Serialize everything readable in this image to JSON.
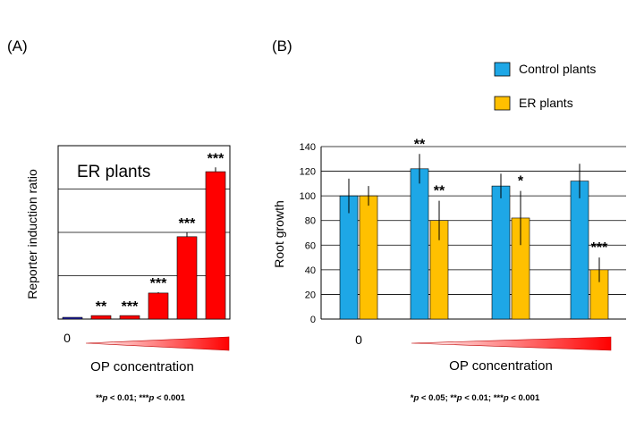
{
  "chart_data": [
    {
      "panel_label": "(A)",
      "type": "bar",
      "title": "ER plants",
      "ylabel": "Reporter induction ratio",
      "xlabel": "OP concentration",
      "x_first_label": "0",
      "ylim": [
        0,
        4
      ],
      "grid": true,
      "values": [
        0.04,
        0.08,
        0.08,
        0.6,
        1.9,
        3.4
      ],
      "errors": [
        0.0,
        0.0,
        0.0,
        0.02,
        0.1,
        0.1
      ],
      "significance": [
        "",
        "**",
        "***",
        "***",
        "***",
        "***"
      ],
      "bar_colors": [
        "#1f1fb0",
        "#ff0000",
        "#ff0000",
        "#ff0000",
        "#ff0000",
        "#ff0000"
      ],
      "footnote": [
        {
          "text": "**",
          "italic": false
        },
        {
          "text": "p",
          "italic": true
        },
        {
          "text": " < 0.01; ***",
          "italic": false
        },
        {
          "text": "p",
          "italic": true
        },
        {
          "text": " < 0.001",
          "italic": false
        }
      ]
    },
    {
      "panel_label": "(B)",
      "type": "bar",
      "ylabel": "Root growth",
      "xlabel": "OP concentration",
      "x_first_label": "0",
      "ylim": [
        0,
        140
      ],
      "yticks": [
        0,
        20,
        40,
        60,
        80,
        100,
        120,
        140
      ],
      "grid": true,
      "legend_position": "top-right",
      "series": [
        {
          "name": "Control plants",
          "color": "#1ea7e6",
          "values": [
            100,
            122,
            108,
            112
          ],
          "errors": [
            14,
            12,
            10,
            14
          ],
          "significance": [
            "",
            "**",
            "",
            ""
          ]
        },
        {
          "name": "ER plants",
          "color": "#ffc000",
          "values": [
            100,
            80,
            82,
            40
          ],
          "errors": [
            8,
            16,
            22,
            10
          ],
          "significance": [
            "",
            "**",
            "*",
            "***"
          ]
        }
      ],
      "footnote": [
        {
          "text": "*",
          "italic": false
        },
        {
          "text": "p",
          "italic": true
        },
        {
          "text": " < 0.05; **",
          "italic": false
        },
        {
          "text": "p",
          "italic": true
        },
        {
          "text": " < 0.01; ***",
          "italic": false
        },
        {
          "text": "p",
          "italic": true
        },
        {
          "text": " < 0.001",
          "italic": false
        }
      ]
    }
  ]
}
